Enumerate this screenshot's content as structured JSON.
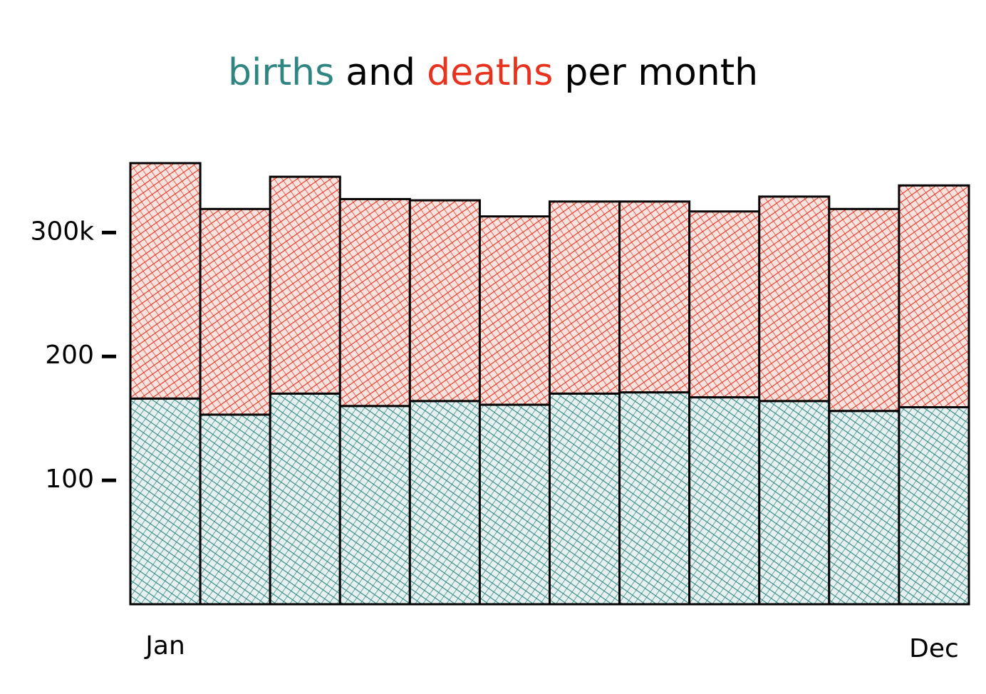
{
  "chart_data": {
    "type": "stacked-bar",
    "title": [
      "births",
      "and",
      "deaths",
      "per month"
    ],
    "categories": [
      "Jan",
      null,
      null,
      null,
      null,
      null,
      null,
      null,
      null,
      null,
      null,
      "Dec"
    ],
    "series": [
      {
        "name": "births",
        "color": "#2e8582",
        "values": [
          166,
          153,
          170,
          160,
          164,
          161,
          170,
          171,
          167,
          164,
          156,
          159
        ]
      },
      {
        "name": "deaths",
        "color": "#e8321e",
        "values": [
          190,
          166,
          175,
          167,
          162,
          152,
          155,
          154,
          150,
          165,
          163,
          179
        ]
      }
    ],
    "ylim": [
      0,
      360
    ],
    "yticks": [
      100,
      200,
      {
        "value": 300,
        "label": "300k"
      }
    ]
  }
}
